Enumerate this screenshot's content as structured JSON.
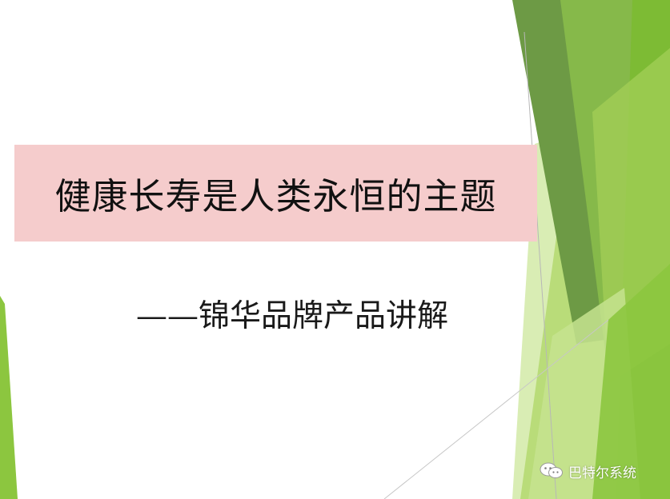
{
  "slide": {
    "title": "健康长寿是人类永恒的主题",
    "subtitle": "——锦华品牌产品讲解"
  },
  "watermark": {
    "account_name": "巴特尔系统",
    "icon": "wechat-icon"
  },
  "colors": {
    "title_box_bg": "#f5cccc",
    "green_dark": "#5f8f3a",
    "green_mid": "#7fb33c",
    "green_light": "#a8d05a",
    "green_pale": "#cfe7a1"
  }
}
